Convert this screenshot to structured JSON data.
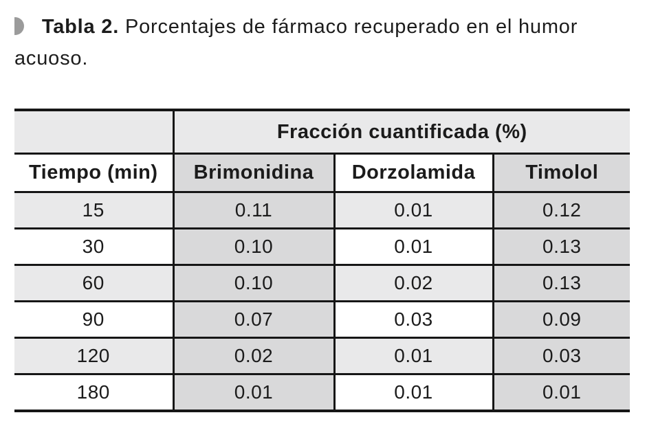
{
  "caption": {
    "marker_icon": "half-disc-bullet",
    "label": "Tabla 2.",
    "text": "Porcentajes de fármaco recuperado en el humor acuoso."
  },
  "table": {
    "group_header": "Fracción cuantificada (%)",
    "columns": [
      "Tiempo (min)",
      "Brimonidina",
      "Dorzolamida",
      "Timolol"
    ],
    "rows": [
      {
        "time": "15",
        "values": [
          "0.11",
          "0.01",
          "0.12"
        ]
      },
      {
        "time": "30",
        "values": [
          "0.10",
          "0.01",
          "0.13"
        ]
      },
      {
        "time": "60",
        "values": [
          "0.10",
          "0.02",
          "0.13"
        ]
      },
      {
        "time": "90",
        "values": [
          "0.07",
          "0.03",
          "0.09"
        ]
      },
      {
        "time": "120",
        "values": [
          "0.02",
          "0.01",
          "0.03"
        ]
      },
      {
        "time": "180",
        "values": [
          "0.01",
          "0.01",
          "0.01"
        ]
      }
    ]
  },
  "colors": {
    "light_gray_cell": "#e9e9ea",
    "medium_gray_cell": "#d9d9da",
    "border_black": "#161616",
    "bullet_gray": "#9b9b9b",
    "text": "#1c1c1c"
  },
  "chart_data": {
    "type": "table",
    "title": "Tabla 2. Porcentajes de fármaco recuperado en el humor acuoso.",
    "group_header": "Fracción cuantificada (%)",
    "x_label": "Tiempo (min)",
    "categories": [
      15,
      30,
      60,
      90,
      120,
      180
    ],
    "series": [
      {
        "name": "Brimonidina",
        "values": [
          0.11,
          0.1,
          0.1,
          0.07,
          0.02,
          0.01
        ]
      },
      {
        "name": "Dorzolamida",
        "values": [
          0.01,
          0.01,
          0.02,
          0.03,
          0.01,
          0.01
        ]
      },
      {
        "name": "Timolol",
        "values": [
          0.12,
          0.13,
          0.13,
          0.09,
          0.03,
          0.01
        ]
      }
    ]
  }
}
